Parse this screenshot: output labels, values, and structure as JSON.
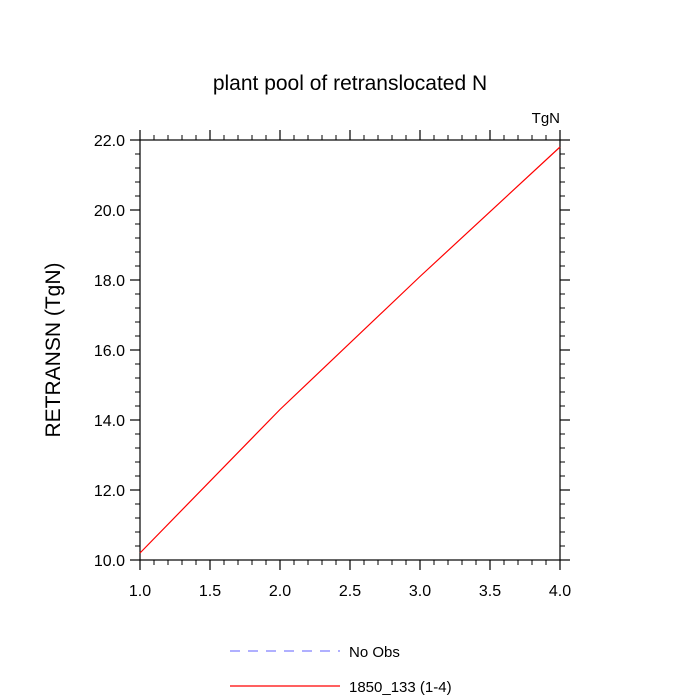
{
  "chart_data": {
    "type": "line",
    "title": "plant pool of retranslocated N",
    "units_label": "TgN",
    "xlabel": "",
    "ylabel": "RETRANSN  (TgN)",
    "xlim": [
      1.0,
      4.0
    ],
    "ylim": [
      10.0,
      22.0
    ],
    "x_ticks": [
      "1.0",
      "1.5",
      "2.0",
      "2.5",
      "3.0",
      "3.5",
      "4.0"
    ],
    "y_ticks": [
      "10.0",
      "12.0",
      "14.0",
      "16.0",
      "18.0",
      "20.0",
      "22.0"
    ],
    "grid": false,
    "legend_position": "bottom",
    "series": [
      {
        "name": "No Obs",
        "color": "#8080ff",
        "dash": "dashed",
        "x": [],
        "y": []
      },
      {
        "name": "1850_133 (1-4)",
        "color": "#ff0000",
        "dash": "solid",
        "x": [
          1.0,
          2.0,
          3.0,
          4.0
        ],
        "y": [
          10.2,
          14.3,
          18.1,
          21.8
        ]
      }
    ]
  }
}
